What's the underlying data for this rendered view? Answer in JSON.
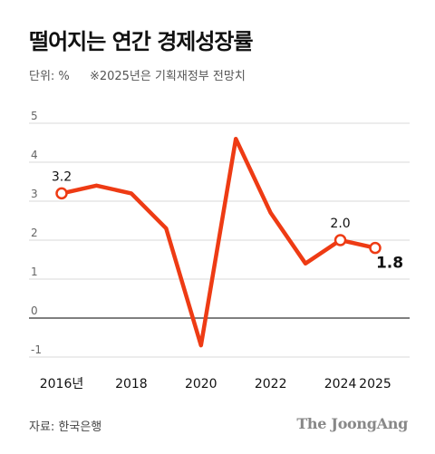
{
  "title": "떨어지는 연간 경제성장률",
  "unit_label": "단위: %",
  "note": "※2025년은 기획재정부 전망치",
  "source": "자료: 한국은행",
  "brand": "The JoongAng",
  "colors": {
    "line": "#ee3b14",
    "grid": "#d9d9d9",
    "zero": "#333333",
    "text": "#111111",
    "tick": "#666666"
  },
  "chart_data": {
    "type": "line",
    "x": [
      2016,
      2017,
      2018,
      2019,
      2020,
      2021,
      2022,
      2023,
      2024,
      2025
    ],
    "values": [
      3.2,
      3.4,
      3.2,
      2.3,
      -0.7,
      4.6,
      2.7,
      1.4,
      2.0,
      1.8
    ],
    "ylim": [
      -1,
      5
    ],
    "yticks": [
      -1,
      0,
      1,
      2,
      3,
      4,
      5
    ],
    "ytick_labels": [
      "-1",
      "0",
      "1",
      "2",
      "3",
      "4",
      "5"
    ],
    "xtick_labels": [
      {
        "x": 2016,
        "label": "2016년"
      },
      {
        "x": 2018,
        "label": "2018"
      },
      {
        "x": 2020,
        "label": "2020"
      },
      {
        "x": 2022,
        "label": "2022"
      },
      {
        "x": 2024,
        "label": "2024"
      },
      {
        "x": 2025,
        "label": "2025"
      }
    ],
    "data_labels": [
      {
        "x": 2016,
        "label": "3.2",
        "marker": true,
        "bold": false,
        "position": "above"
      },
      {
        "x": 2024,
        "label": "2.0",
        "marker": true,
        "bold": false,
        "position": "above"
      },
      {
        "x": 2025,
        "label": "1.8",
        "marker": true,
        "bold": true,
        "position": "below-right"
      }
    ],
    "grid": true
  }
}
